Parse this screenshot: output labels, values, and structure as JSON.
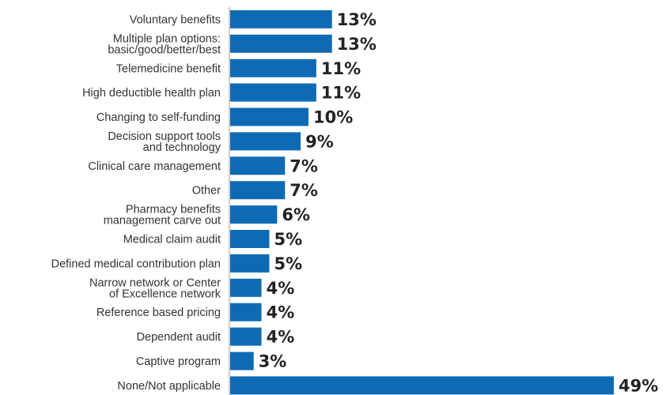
{
  "chart_data": {
    "type": "bar",
    "orientation": "horizontal",
    "categories": [
      [
        "Voluntary benefits"
      ],
      [
        "Multiple plan options:",
        "basic/good/better/best"
      ],
      [
        "Telemedicine benefit"
      ],
      [
        "High deductible health plan"
      ],
      [
        "Changing to self-funding"
      ],
      [
        "Decision support tools",
        "and technology"
      ],
      [
        "Clinical care management"
      ],
      [
        "Other"
      ],
      [
        "Pharmacy benefits",
        "management carve out"
      ],
      [
        "Medical claim audit"
      ],
      [
        "Defined medical contribution plan"
      ],
      [
        "Narrow network or Center",
        "of Excellence network"
      ],
      [
        "Reference based pricing"
      ],
      [
        "Dependent audit"
      ],
      [
        "Captive program"
      ],
      [
        "None/Not applicable"
      ]
    ],
    "values": [
      13,
      13,
      11,
      11,
      10,
      9,
      7,
      7,
      6,
      5,
      5,
      4,
      4,
      4,
      3,
      49
    ],
    "value_labels": [
      "13%",
      "13%",
      "11%",
      "11%",
      "10%",
      "9%",
      "7%",
      "7%",
      "6%",
      "5%",
      "5%",
      "4%",
      "4%",
      "4%",
      "3%",
      "49%"
    ],
    "bar_color": "#0f6ab4",
    "axis_color": "#999999",
    "xlim": [
      0,
      49
    ],
    "grid": false,
    "title": "",
    "xlabel": "",
    "ylabel": ""
  }
}
